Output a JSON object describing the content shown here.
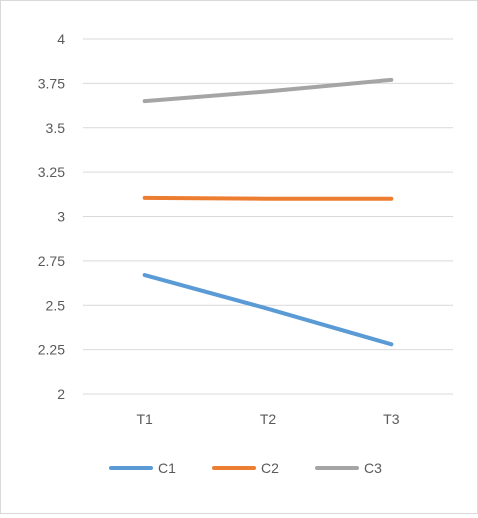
{
  "chart_data": {
    "type": "line",
    "categories": [
      "T1",
      "T2",
      "T3"
    ],
    "series": [
      {
        "name": "C1",
        "values": [
          2.67,
          2.48,
          2.28
        ],
        "color": "#5b9bd5"
      },
      {
        "name": "C2",
        "values": [
          3.105,
          3.1,
          3.1
        ],
        "color": "#ed7d31"
      },
      {
        "name": "C3",
        "values": [
          3.65,
          3.705,
          3.77
        ],
        "color": "#a5a5a5"
      }
    ],
    "ylim": [
      2,
      4
    ],
    "yticks": [
      "2",
      "2.25",
      "2.5",
      "2.75",
      "3",
      "3.25",
      "3.5",
      "3.75",
      "4"
    ],
    "grid": true,
    "legend": "bottom",
    "gridline_color": "#d9d9d9"
  }
}
